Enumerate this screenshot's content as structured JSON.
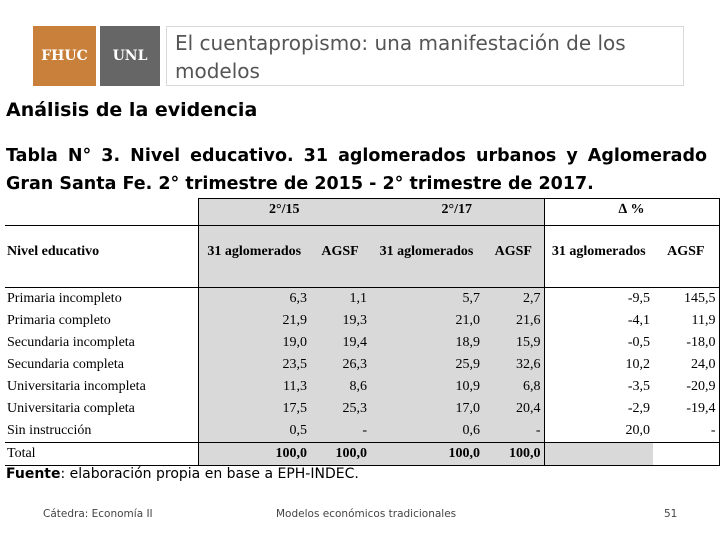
{
  "logos": {
    "left": "FHUC",
    "right": "UNL"
  },
  "slide_title": "El cuentapropismo: una manifestación de los modelos",
  "section_title": "Análisis de la evidencia",
  "caption_line1": "Tabla N° 3. Nivel educativo. 31 aglomerados urbanos y Aglomerado",
  "caption_line2": "Gran Santa Fe. 2° trimestre de 2015 - 2° trimestre de 2017.",
  "table": {
    "period_headers": [
      "2°/15",
      "2°/17",
      "∆ %"
    ],
    "row_header": "Nivel educativo",
    "col_headers": [
      "31 aglomerados",
      "AGSF",
      "31 aglomerados",
      "AGSF",
      "31 aglomerados",
      "AGSF"
    ],
    "rows": [
      {
        "label": "Primaria incompleto",
        "values": [
          "6,3",
          "1,1",
          "5,7",
          "2,7",
          "-9,5",
          "145,5"
        ]
      },
      {
        "label": "Primaria completo",
        "values": [
          "21,9",
          "19,3",
          "21,0",
          "21,6",
          "-4,1",
          "11,9"
        ]
      },
      {
        "label": "Secundaria incompleta",
        "values": [
          "19,0",
          "19,4",
          "18,9",
          "15,9",
          "-0,5",
          "-18,0"
        ]
      },
      {
        "label": "Secundaria completa",
        "values": [
          "23,5",
          "26,3",
          "25,9",
          "32,6",
          "10,2",
          "24,0"
        ]
      },
      {
        "label": "Universitaria incompleta",
        "values": [
          "11,3",
          "8,6",
          "10,9",
          "6,8",
          "-3,5",
          "-20,9"
        ]
      },
      {
        "label": "Universitaria completa",
        "values": [
          "17,5",
          "25,3",
          "17,0",
          "20,4",
          "-2,9",
          "-19,4"
        ]
      },
      {
        "label": "Sin instrucción",
        "values": [
          "0,5",
          "-",
          "0,6",
          "-",
          "20,0",
          "-"
        ]
      }
    ],
    "total": {
      "label": "Total",
      "values": [
        "100,0",
        "100,0",
        "100,0",
        "100,0",
        "",
        ""
      ]
    }
  },
  "source_label": "Fuente",
  "source_text": ": elaboración propia en base a EPH-INDEC.",
  "footer": {
    "left": "Cátedra: Economía II",
    "center": "Modelos económicos tradicionales",
    "page": "51"
  },
  "colors": {
    "logo_fhuc": "#c9803a",
    "logo_unl": "#666666",
    "table_shade": "#d9d9d9"
  }
}
